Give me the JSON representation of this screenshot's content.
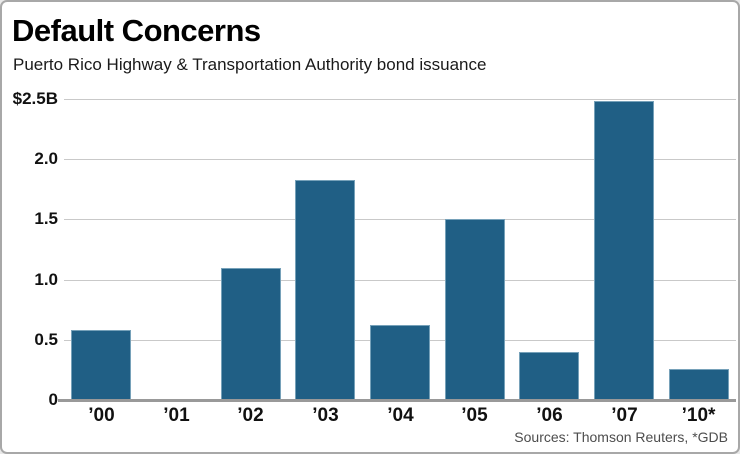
{
  "card": {
    "title": "Default Concerns",
    "subtitle": "Puerto Rico Highway & Transportation Authority bond issuance",
    "source": "Sources: Thomson Reuters, *GDB"
  },
  "chart_data": {
    "type": "bar",
    "title": "Default Concerns",
    "subtitle": "Puerto Rico Highway & Transportation Authority bond issuance",
    "categories": [
      "’00",
      "’01",
      "’02",
      "’03",
      "’04",
      "’05",
      "’06",
      "’07",
      "’10*"
    ],
    "values": [
      0.58,
      0,
      1.1,
      1.83,
      0.62,
      1.5,
      0.4,
      2.48,
      0.26
    ],
    "unit": "billions of dollars",
    "xlabel": "",
    "ylabel": "",
    "ylim": [
      0,
      2.5
    ],
    "yticks": [
      {
        "value": 0,
        "label": "0"
      },
      {
        "value": 0.5,
        "label": "0.5"
      },
      {
        "value": 1.0,
        "label": "1.0"
      },
      {
        "value": 1.5,
        "label": "1.5"
      },
      {
        "value": 2.0,
        "label": "2.0"
      },
      {
        "value": 2.5,
        "label": "$2.5B"
      }
    ],
    "grid": true,
    "legend": "none",
    "source": "Sources: Thomson Reuters, *GDB",
    "bar_color": "#205f85",
    "gridline_color": "#c9c9c9",
    "axis_color": "#999999"
  }
}
